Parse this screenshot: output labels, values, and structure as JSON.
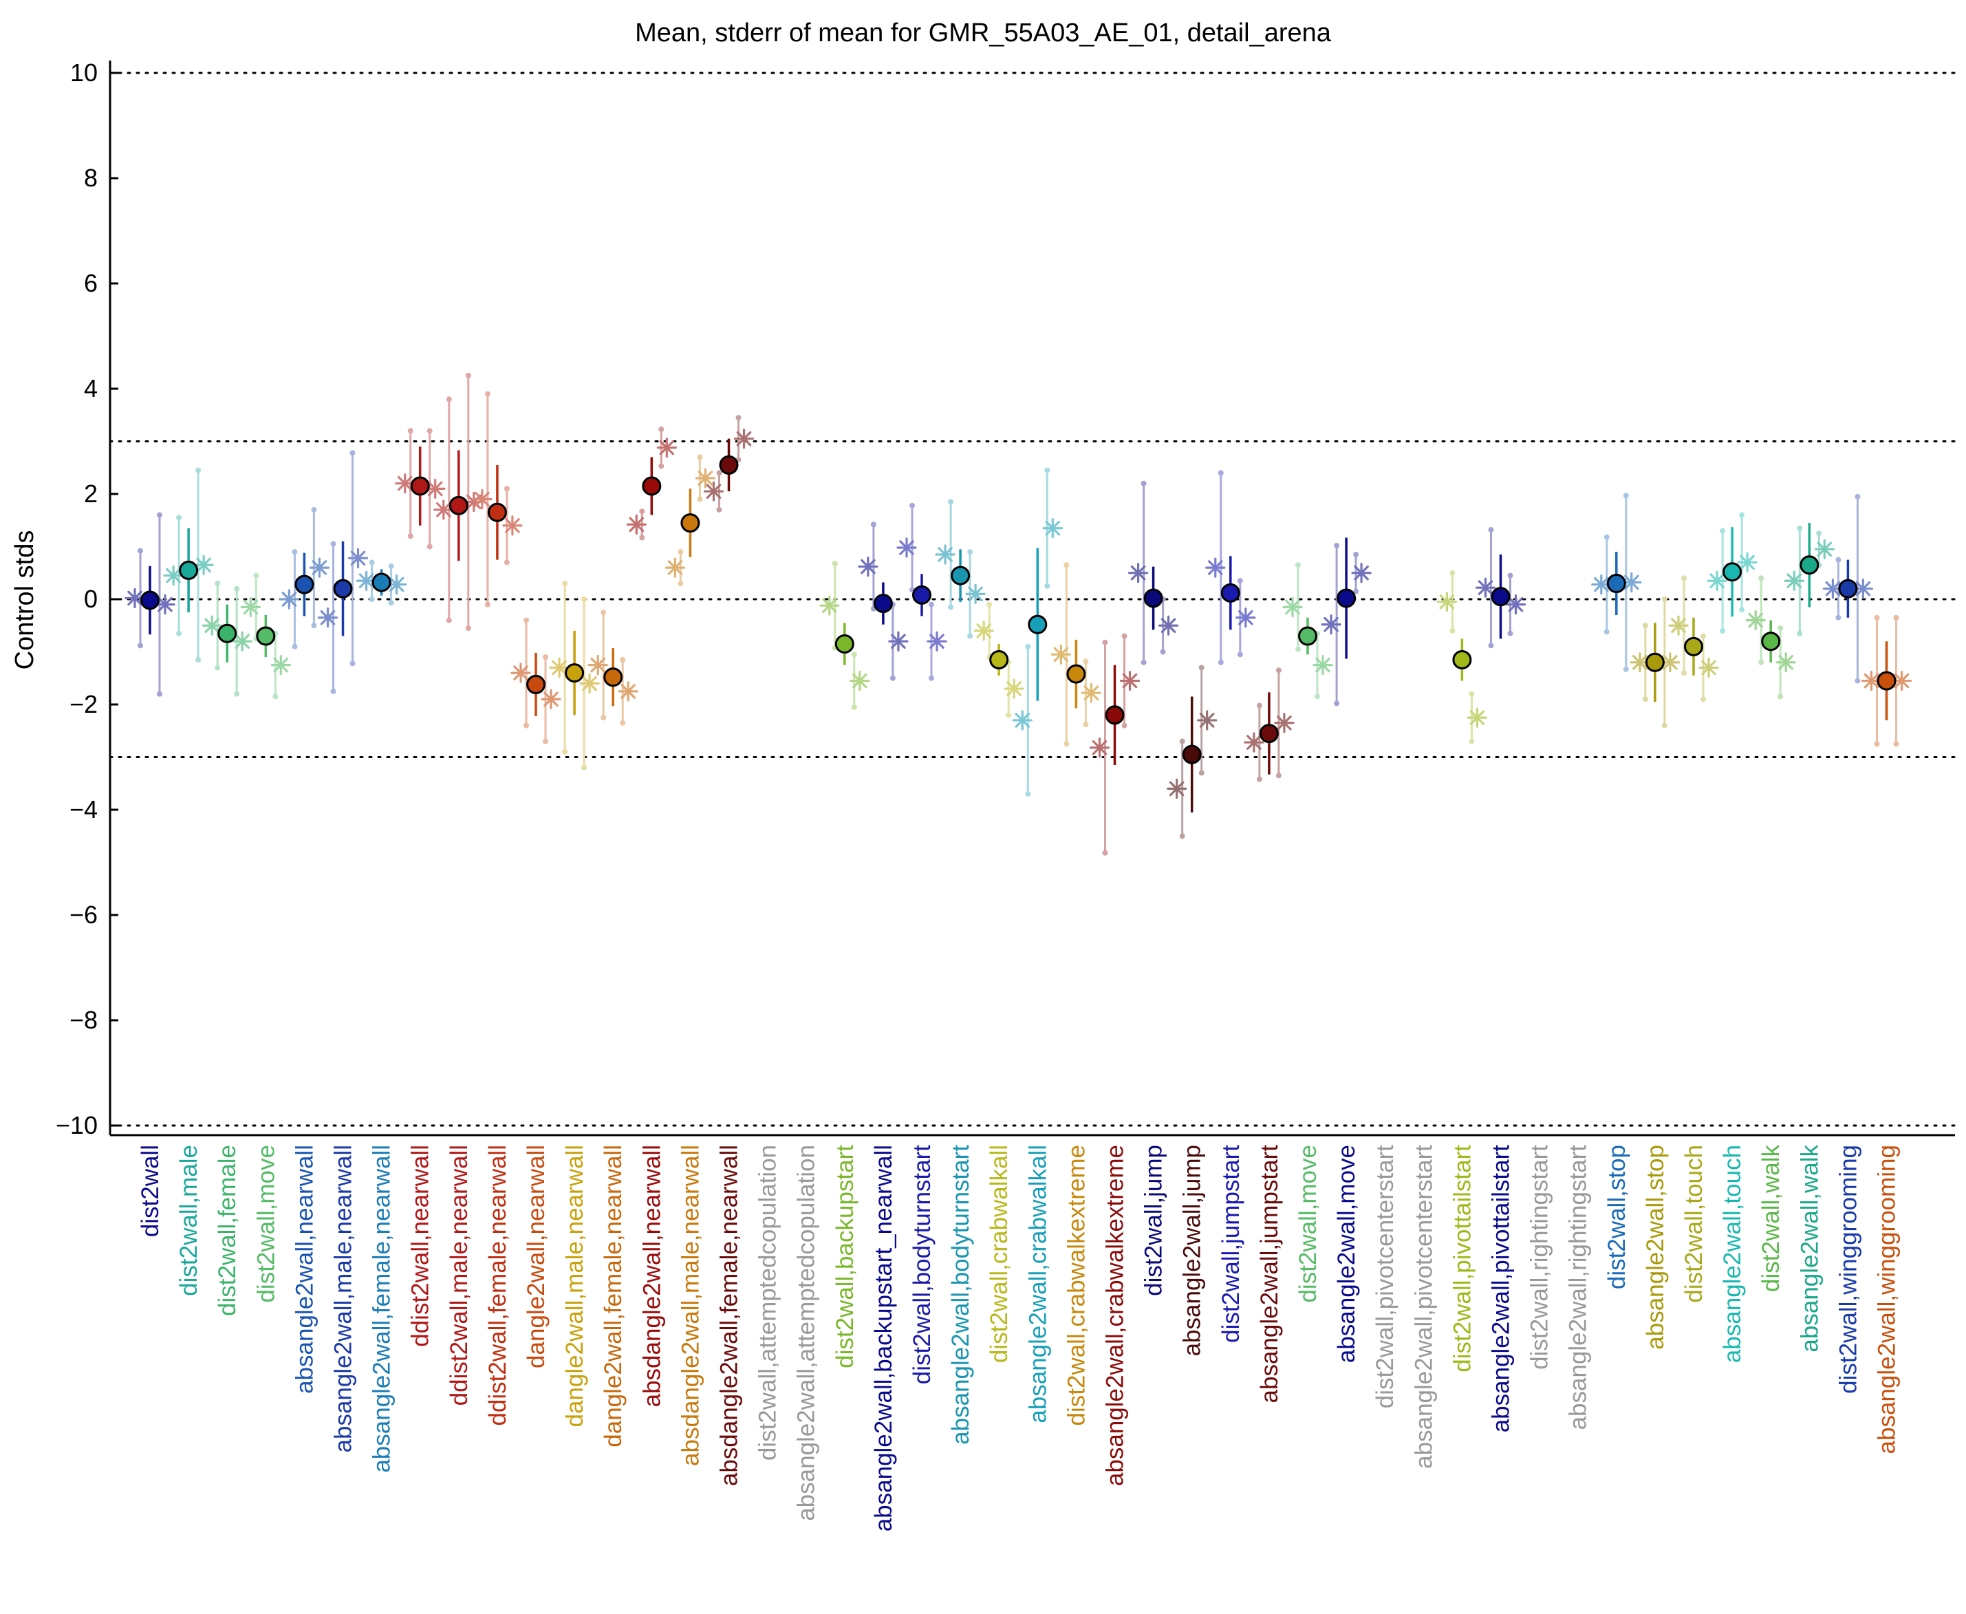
{
  "chart_data": {
    "type": "scatter",
    "title": "Mean, stderr of mean for GMR_55A03_AE_01, detail_arena",
    "ylabel": "Control stds",
    "xlabel": "",
    "ylim": [
      -10,
      10
    ],
    "yticks": [
      -10,
      -8,
      -6,
      -4,
      -2,
      0,
      2,
      4,
      6,
      8,
      10
    ],
    "reference_lines": [
      -10,
      -3,
      0,
      3,
      10
    ],
    "grid": false,
    "categories": [
      {
        "label": "dist2wall",
        "color": "#0a0a8c",
        "mean": -0.02,
        "err": 0.65,
        "male": 0.02,
        "female": -0.1,
        "male_err": 0.9,
        "female_err": 1.7
      },
      {
        "label": "dist2wall,male",
        "color": "#19a89a",
        "mean": 0.55,
        "err": 0.8,
        "male": 0.45,
        "female": 0.65,
        "male_err": 1.1,
        "female_err": 1.8
      },
      {
        "label": "dist2wall,female",
        "color": "#3bb36a",
        "mean": -0.65,
        "err": 0.55,
        "male": -0.5,
        "female": -0.8,
        "male_err": 0.8,
        "female_err": 1.0
      },
      {
        "label": "dist2wall,move",
        "color": "#55bb66",
        "mean": -0.7,
        "err": 0.4,
        "male": -0.15,
        "female": -1.25,
        "male_err": 0.6,
        "female_err": 0.6
      },
      {
        "label": "absangle2wall,nearwall",
        "color": "#1a54b0",
        "mean": 0.28,
        "err": 0.6,
        "male": 0.0,
        "female": 0.6,
        "male_err": 0.9,
        "female_err": 1.1
      },
      {
        "label": "absangle2wall,male,nearwall",
        "color": "#1c3aa8",
        "mean": 0.2,
        "err": 0.9,
        "male": -0.35,
        "female": 0.78,
        "male_err": 1.4,
        "female_err": 2.0
      },
      {
        "label": "absangle2wall,female,nearwall",
        "color": "#1b7db8",
        "mean": 0.32,
        "err": 0.25,
        "male": 0.35,
        "female": 0.28,
        "male_err": 0.35,
        "female_err": 0.35
      },
      {
        "label": "ddist2wall,nearwall",
        "color": "#b01818",
        "mean": 2.15,
        "err": 0.75,
        "male": 2.2,
        "female": 2.1,
        "male_err": 1.0,
        "female_err": 1.1
      },
      {
        "label": "ddist2wall,male,nearwall",
        "color": "#b01818",
        "mean": 1.78,
        "err": 1.05,
        "male": 1.7,
        "female": 1.85,
        "male_err": 2.1,
        "female_err": 2.4
      },
      {
        "label": "ddist2wall,female,nearwall",
        "color": "#c02f12",
        "mean": 1.65,
        "err": 0.9,
        "male": 1.9,
        "female": 1.4,
        "male_err": 2.0,
        "female_err": 0.7
      },
      {
        "label": "dangle2wall,nearwall",
        "color": "#c84a0e",
        "mean": -1.62,
        "err": 0.6,
        "male": -1.4,
        "female": -1.9,
        "male_err": 1.0,
        "female_err": 0.8
      },
      {
        "label": "dangle2wall,male,nearwall",
        "color": "#c8a20c",
        "mean": -1.4,
        "err": 0.8,
        "male": -1.3,
        "female": -1.6,
        "male_err": 1.6,
        "female_err": 1.6
      },
      {
        "label": "dangle2wall,female,nearwall",
        "color": "#c8680c",
        "mean": -1.48,
        "err": 0.55,
        "male": -1.25,
        "female": -1.75,
        "male_err": 1.0,
        "female_err": 0.6
      },
      {
        "label": "absdangle2wall,nearwall",
        "color": "#9a0a0a",
        "mean": 2.15,
        "err": 0.55,
        "male": 1.42,
        "female": 2.88,
        "male_err": 0.25,
        "female_err": 0.35
      },
      {
        "label": "absdangle2wall,male,nearwall",
        "color": "#c8780c",
        "mean": 1.45,
        "err": 0.65,
        "male": 0.6,
        "female": 2.3,
        "male_err": 0.3,
        "female_err": 0.4
      },
      {
        "label": "absdangle2wall,female,nearwall",
        "color": "#6a0a0a",
        "mean": 2.55,
        "err": 0.5,
        "male": 2.05,
        "female": 3.05,
        "male_err": 0.35,
        "female_err": 0.4
      },
      {
        "label": "dist2wall,attemptedcopulation",
        "color": "#999999",
        "mean": null,
        "err": null,
        "male": null,
        "female": null,
        "male_err": null,
        "female_err": null
      },
      {
        "label": "absangle2wall,attemptedcopulation",
        "color": "#999999",
        "mean": null,
        "err": null,
        "male": null,
        "female": null,
        "male_err": null,
        "female_err": null
      },
      {
        "label": "dist2wall,backupstart",
        "color": "#7ab82a",
        "mean": -0.85,
        "err": 0.4,
        "male": -0.12,
        "female": -1.55,
        "male_err": 0.8,
        "female_err": 0.5
      },
      {
        "label": "absangle2wall,backupstart_nearwall",
        "color": "#0a0a8c",
        "mean": -0.08,
        "err": 0.4,
        "male": 0.62,
        "female": -0.8,
        "male_err": 0.8,
        "female_err": 0.7
      },
      {
        "label": "dist2wall,bodyturnstart",
        "color": "#1a1aa8",
        "mean": 0.08,
        "err": 0.4,
        "male": 0.98,
        "female": -0.8,
        "male_err": 0.8,
        "female_err": 0.7
      },
      {
        "label": "absangle2wall,bodyturnstart",
        "color": "#1a95b0",
        "mean": 0.45,
        "err": 0.5,
        "male": 0.85,
        "female": 0.1,
        "male_err": 1.0,
        "female_err": 0.8
      },
      {
        "label": "dist2wall,crabwalkall",
        "color": "#b8b81a",
        "mean": -1.15,
        "err": 0.3,
        "male": -0.6,
        "female": -1.7,
        "male_err": 0.5,
        "female_err": 0.5
      },
      {
        "label": "absangle2wall,crabwalkall",
        "color": "#18a0b8",
        "mean": -0.48,
        "err": 1.45,
        "male": -2.3,
        "female": 1.35,
        "male_err": 1.4,
        "female_err": 1.1
      },
      {
        "label": "dist2wall,crabwalkextreme",
        "color": "#c8880c",
        "mean": -1.42,
        "err": 0.65,
        "male": -1.05,
        "female": -1.78,
        "male_err": 1.7,
        "female_err": 0.6
      },
      {
        "label": "absangle2wall,crabwalkextreme",
        "color": "#8a0a0a",
        "mean": -2.2,
        "err": 0.95,
        "male": -2.82,
        "female": -1.55,
        "male_err": 2.0,
        "female_err": 0.85
      },
      {
        "label": "dist2wall,jump",
        "color": "#0a0a7a",
        "mean": 0.02,
        "err": 0.6,
        "male": 0.5,
        "female": -0.5,
        "male_err": 1.7,
        "female_err": 0.5
      },
      {
        "label": "absangle2wall,jump",
        "color": "#4a0a0a",
        "mean": -2.95,
        "err": 1.1,
        "male": -3.6,
        "female": -2.3,
        "male_err": 0.9,
        "female_err": 1.0
      },
      {
        "label": "dist2wall,jumpstart",
        "color": "#1a1ab0",
        "mean": 0.12,
        "err": 0.7,
        "male": 0.6,
        "female": -0.35,
        "male_err": 1.8,
        "female_err": 0.7
      },
      {
        "label": "absangle2wall,jumpstart",
        "color": "#6a0a0a",
        "mean": -2.55,
        "err": 0.78,
        "male": -2.72,
        "female": -2.35,
        "male_err": 0.7,
        "female_err": 1.0
      },
      {
        "label": "dist2wall,move",
        "color": "#55bb66",
        "mean": -0.7,
        "err": 0.35,
        "male": -0.15,
        "female": -1.25,
        "male_err": 0.8,
        "female_err": 0.6
      },
      {
        "label": "absangle2wall,move",
        "color": "#0a0a8c",
        "mean": 0.02,
        "err": 1.15,
        "male": -0.48,
        "female": 0.5,
        "male_err": 1.5,
        "female_err": 0.35
      },
      {
        "label": "dist2wall,pivotcenterstart",
        "color": "#999999",
        "mean": null,
        "err": null,
        "male": null,
        "female": null,
        "male_err": null,
        "female_err": null
      },
      {
        "label": "absangle2wall,pivotcenterstart",
        "color": "#999999",
        "mean": null,
        "err": null,
        "male": null,
        "female": null,
        "male_err": null,
        "female_err": null
      },
      {
        "label": "dist2wall,pivottailstart",
        "color": "#a0b81a",
        "mean": -1.15,
        "err": 0.4,
        "male": -0.05,
        "female": -2.25,
        "male_err": 0.55,
        "female_err": 0.45
      },
      {
        "label": "absangle2wall,pivottailstart",
        "color": "#0a0a8c",
        "mean": 0.05,
        "err": 0.8,
        "male": 0.22,
        "female": -0.1,
        "male_err": 1.1,
        "female_err": 0.55
      },
      {
        "label": "dist2wall,rightingstart",
        "color": "#999999",
        "mean": null,
        "err": null,
        "male": null,
        "female": null,
        "male_err": null,
        "female_err": null
      },
      {
        "label": "absangle2wall,rightingstart",
        "color": "#999999",
        "mean": null,
        "err": null,
        "male": null,
        "female": null,
        "male_err": null,
        "female_err": null
      },
      {
        "label": "dist2wall,stop",
        "color": "#1a6ab8",
        "mean": 0.3,
        "err": 0.6,
        "male": 0.28,
        "female": 0.32,
        "male_err": 0.9,
        "female_err": 1.65
      },
      {
        "label": "absangle2wall,stop",
        "color": "#a89a0a",
        "mean": -1.2,
        "err": 0.75,
        "male": -1.2,
        "female": -1.2,
        "male_err": 0.7,
        "female_err": 1.2
      },
      {
        "label": "dist2wall,touch",
        "color": "#a8a81a",
        "mean": -0.9,
        "err": 0.55,
        "male": -0.5,
        "female": -1.3,
        "male_err": 0.9,
        "female_err": 0.6
      },
      {
        "label": "absangle2wall,touch",
        "color": "#18b8b0",
        "mean": 0.52,
        "err": 0.85,
        "male": 0.35,
        "female": 0.7,
        "male_err": 0.95,
        "female_err": 0.9
      },
      {
        "label": "dist2wall,walk",
        "color": "#5ab84a",
        "mean": -0.8,
        "err": 0.4,
        "male": -0.4,
        "female": -1.2,
        "male_err": 0.8,
        "female_err": 0.65
      },
      {
        "label": "absangle2wall,walk",
        "color": "#1aa88a",
        "mean": 0.65,
        "err": 0.8,
        "male": 0.35,
        "female": 0.95,
        "male_err": 1.0,
        "female_err": 0.3
      },
      {
        "label": "dist2wall,winggrooming",
        "color": "#1a3aa8",
        "mean": 0.2,
        "err": 0.55,
        "male": 0.2,
        "female": 0.2,
        "male_err": 0.55,
        "female_err": 1.75
      },
      {
        "label": "absangle2wall,winggrooming",
        "color": "#c8500c",
        "mean": -1.55,
        "err": 0.75,
        "male": -1.55,
        "female": -1.55,
        "male_err": 1.2,
        "female_err": 1.2
      }
    ]
  }
}
